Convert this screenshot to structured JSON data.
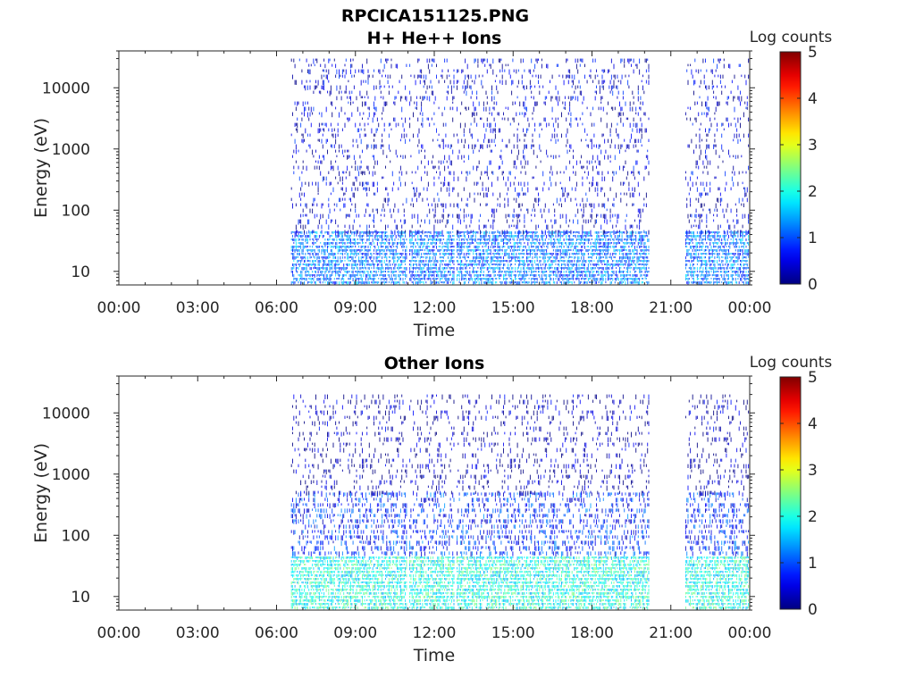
{
  "figure": {
    "filename": "RPCICA151125.PNG"
  },
  "colors": {
    "axis": "#262626",
    "background": "#ffffff"
  },
  "chart_data": [
    {
      "type": "heatmap",
      "title": "H+ He++ Ions",
      "xlabel": "Time",
      "ylabel": "Energy (eV)",
      "yscale": "log",
      "ylim": [
        6,
        40000
      ],
      "xlim": [
        "00:00",
        "24:00"
      ],
      "xticks": [
        "00:00",
        "03:00",
        "06:00",
        "09:00",
        "12:00",
        "15:00",
        "18:00",
        "21:00",
        "00:00"
      ],
      "yticks": [
        10,
        100,
        1000,
        10000
      ],
      "ytick_labels": [
        "10",
        "100",
        "1000",
        "10000"
      ],
      "colorbar": {
        "label": "Log counts",
        "min": 0,
        "max": 5,
        "ticks": [
          "0",
          "1",
          "2",
          "3",
          "4",
          "5"
        ],
        "colormap": "jet"
      },
      "data_intervals_hours": [
        [
          6.55,
          10.95
        ],
        [
          11.05,
          12.75
        ],
        [
          12.85,
          20.15
        ],
        [
          21.55,
          24.0
        ]
      ],
      "bands": [
        {
          "energy_range_eV": [
            6,
            45
          ],
          "log_counts": 1.2,
          "note": ""
        },
        {
          "energy_range_eV": [
            45,
            30000
          ],
          "log_counts": 0.4,
          "note": ""
        }
      ],
      "grid": false
    },
    {
      "type": "heatmap",
      "title": "Other Ions",
      "xlabel": "Time",
      "ylabel": "Energy (eV)",
      "yscale": "log",
      "ylim": [
        6,
        40000
      ],
      "xlim": [
        "00:00",
        "24:00"
      ],
      "xticks": [
        "00:00",
        "03:00",
        "06:00",
        "09:00",
        "12:00",
        "15:00",
        "18:00",
        "21:00",
        "00:00"
      ],
      "yticks": [
        10,
        100,
        1000,
        10000
      ],
      "ytick_labels": [
        "10",
        "100",
        "1000",
        "10000"
      ],
      "colorbar": {
        "label": "Log counts",
        "min": 0,
        "max": 5,
        "ticks": [
          "0",
          "1",
          "2",
          "3",
          "4",
          "5"
        ],
        "colormap": "jet"
      },
      "data_intervals_hours": [
        [
          6.55,
          10.95
        ],
        [
          11.05,
          12.75
        ],
        [
          12.85,
          20.15
        ],
        [
          21.55,
          24.0
        ]
      ],
      "bands": [
        {
          "energy_range_eV": [
            6,
            45
          ],
          "log_counts": 2.0,
          "note": ""
        },
        {
          "energy_range_eV": [
            45,
            500
          ],
          "log_counts": 0.8,
          "note": ""
        },
        {
          "energy_range_eV": [
            500,
            20000
          ],
          "log_counts": 0.2,
          "note": ""
        }
      ],
      "grid": false
    }
  ]
}
